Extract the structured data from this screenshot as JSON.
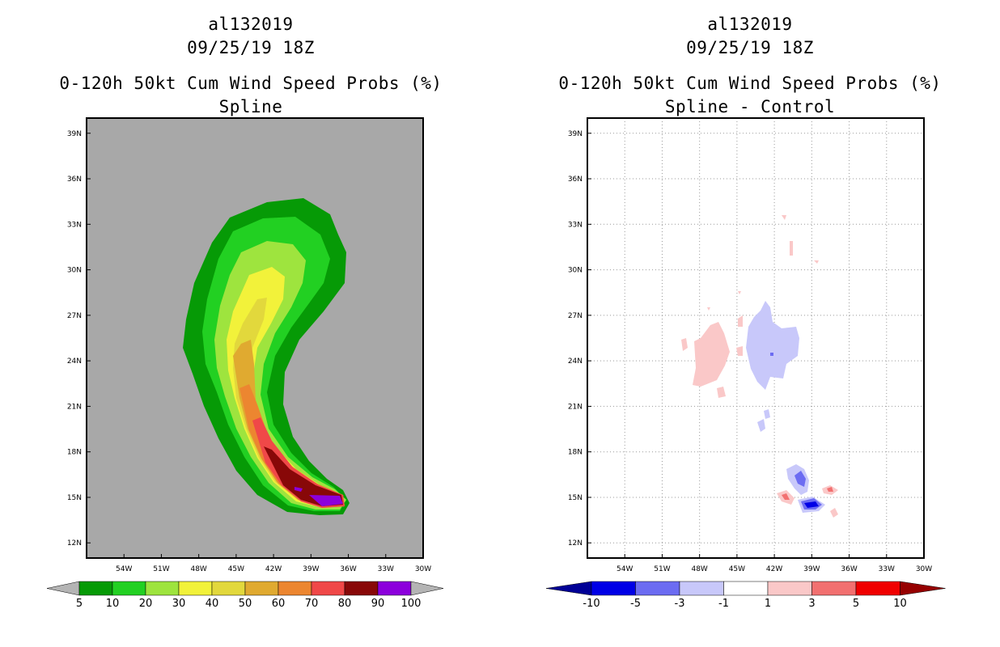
{
  "chart_data": [
    {
      "type": "filled-contour-map",
      "storm_id": "al132019",
      "datetime": "09/25/19 18Z",
      "title": "0-120h 50kt Cum Wind Speed Probs (%)",
      "subtitle": "Spline",
      "background_color": "#a8a8a8",
      "xlabels": [
        "54W",
        "51W",
        "48W",
        "45W",
        "42W",
        "39W",
        "36W",
        "33W",
        "30W"
      ],
      "ylabels": [
        "39N",
        "36N",
        "33N",
        "30N",
        "27N",
        "24N",
        "21N",
        "18N",
        "15N",
        "12N"
      ],
      "xrange_lon": [
        -57,
        -30
      ],
      "yrange_lat": [
        11,
        40
      ],
      "grid": false,
      "colorbar": {
        "labels": [
          "5",
          "10",
          "20",
          "30",
          "40",
          "50",
          "60",
          "70",
          "80",
          "90",
          "100"
        ],
        "colors": [
          "#069a06",
          "#22d022",
          "#9ee43e",
          "#f2f23a",
          "#e2d83c",
          "#e0aa30",
          "#ec8630",
          "#f04848",
          "#880808",
          "#8c00dc"
        ],
        "end_color": "#b4b4b4"
      }
    },
    {
      "type": "filled-contour-map",
      "storm_id": "al132019",
      "datetime": "09/25/19 18Z",
      "title": "0-120h 50kt Cum Wind Speed Probs (%)",
      "subtitle": "Spline - Control",
      "background_color": "#ffffff",
      "xlabels": [
        "54W",
        "51W",
        "48W",
        "45W",
        "42W",
        "39W",
        "36W",
        "33W",
        "30W"
      ],
      "ylabels": [
        "39N",
        "36N",
        "33N",
        "30N",
        "27N",
        "24N",
        "21N",
        "18N",
        "15N",
        "12N"
      ],
      "xrange_lon": [
        -57,
        -30
      ],
      "yrange_lat": [
        11,
        40
      ],
      "grid": true,
      "colorbar": {
        "labels": [
          "-10",
          "-5",
          "-3",
          "-1",
          "1",
          "3",
          "5",
          "10"
        ],
        "colors": [
          "#0000e6",
          "#6c6cf2",
          "#c8c8fa",
          "#ffffff",
          "#fac8c8",
          "#f27070",
          "#f00000"
        ],
        "low_end_color": "#000096",
        "high_end_color": "#960000"
      }
    }
  ]
}
